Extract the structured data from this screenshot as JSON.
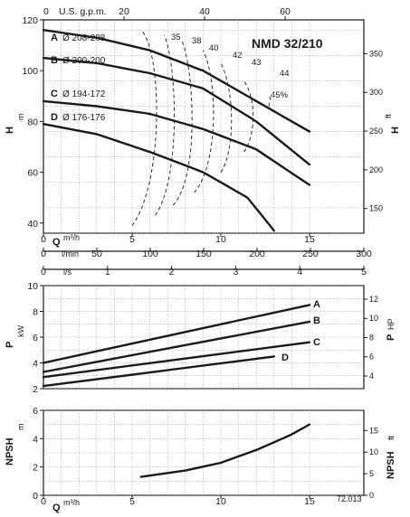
{
  "chart_data": [
    {
      "type": "line",
      "title": "NMD 32/210",
      "ylabel": "H",
      "ylabel_unit": "m",
      "ylabel_right": "H",
      "ylabel_right_unit": "ft",
      "x_label_top": "U.S. g.p.m.",
      "x_label_q": "Q",
      "x_label_q_unit": "m³/h",
      "x_label_lmin": "l/min",
      "x_label_ls": "l/s",
      "xlim": [
        0,
        15
      ],
      "ylim": [
        36,
        120
      ],
      "y_ticks": [
        40,
        60,
        80,
        100,
        120
      ],
      "x_ticks_q": [
        0,
        5,
        10,
        15
      ],
      "x_ticks_gpm": [
        20,
        40,
        60
      ],
      "x_ticks_lmin": [
        0,
        50,
        100,
        150,
        200,
        250,
        300
      ],
      "x_ticks_ls": [
        0,
        1,
        2,
        3,
        4,
        5
      ],
      "y_right_ticks": [
        150,
        200,
        250,
        300,
        350
      ],
      "y_right_tick_labels": [
        "150",
        "200",
        "250",
        "300",
        "350"
      ],
      "series": [
        {
          "letter": "A",
          "name": "Ø 208-208",
          "x": [
            0,
            3,
            6,
            9,
            12,
            13.5,
            15
          ],
          "y": [
            116,
            113,
            108,
            100,
            88,
            82,
            76
          ]
        },
        {
          "letter": "B",
          "name": "Ø 200-200",
          "x": [
            0,
            3,
            6,
            9,
            12,
            15
          ],
          "y": [
            105,
            103,
            99,
            93,
            80,
            63
          ]
        },
        {
          "letter": "C",
          "name": "Ø 194-172",
          "x": [
            0,
            3,
            6,
            9,
            12,
            15
          ],
          "y": [
            88,
            86,
            83,
            77,
            69,
            55
          ]
        },
        {
          "letter": "D",
          "name": "Ø 176-176",
          "x": [
            0,
            3,
            6,
            9,
            11.5,
            13
          ],
          "y": [
            79,
            75,
            68,
            60,
            50,
            37
          ]
        }
      ],
      "efficiency_lines": [
        {
          "label": "35",
          "path": [
            [
              5,
              39
            ],
            [
              6.8,
              56
            ],
            [
              6.7,
              108
            ],
            [
              5.5,
              116
            ]
          ]
        },
        {
          "label": "38",
          "path": [
            [
              6.3,
              43
            ],
            [
              7.8,
              58
            ],
            [
              7.5,
              104
            ],
            [
              6.8,
              114
            ]
          ]
        },
        {
          "label": "40",
          "path": [
            [
              7.3,
              47
            ],
            [
              8.8,
              58
            ],
            [
              8.5,
              100
            ],
            [
              7.8,
              112
            ]
          ]
        },
        {
          "label": "42",
          "path": [
            [
              8.5,
              52
            ],
            [
              9.8,
              62
            ],
            [
              9.9,
              95
            ],
            [
              9.0,
              108
            ]
          ]
        },
        {
          "label": "43",
          "path": [
            [
              10.0,
              60
            ],
            [
              10.8,
              68
            ],
            [
              10.8,
              92
            ],
            [
              10.0,
              103
            ]
          ]
        },
        {
          "label": "44",
          "path": [
            [
              11.3,
              68
            ],
            [
              12.0,
              75
            ],
            [
              12.0,
              89
            ],
            [
              11.3,
              96
            ]
          ]
        },
        {
          "label": "45%",
          "path": [
            [
              12.7,
              86
            ],
            [
              12.8,
              89
            ],
            [
              12.7,
              90
            ]
          ]
        }
      ]
    },
    {
      "type": "line",
      "ylabel": "P",
      "ylabel_unit": "kW",
      "ylabel_right": "P",
      "ylabel_right_unit": "HP",
      "xlim": [
        0,
        15
      ],
      "ylim": [
        2,
        10
      ],
      "y_ticks": [
        2,
        4,
        6,
        8,
        10
      ],
      "y_right_ticks": [
        4,
        6,
        8,
        10,
        12
      ],
      "series": [
        {
          "letter": "A",
          "x": [
            0,
            15
          ],
          "y": [
            4.0,
            8.5
          ]
        },
        {
          "letter": "B",
          "x": [
            0,
            15
          ],
          "y": [
            3.3,
            7.2
          ]
        },
        {
          "letter": "C",
          "x": [
            0,
            15
          ],
          "y": [
            2.9,
            5.6
          ]
        },
        {
          "letter": "D",
          "x": [
            0,
            13
          ],
          "y": [
            2.2,
            4.5
          ]
        }
      ]
    },
    {
      "type": "line",
      "ylabel": "NPSH",
      "ylabel_unit": "m",
      "ylabel_right": "NPSH",
      "ylabel_right_unit": "ft",
      "xlabel": "Q",
      "xlabel_unit": "m³/h",
      "xlim": [
        0,
        15
      ],
      "ylim": [
        0,
        6
      ],
      "y_ticks": [
        0,
        2,
        4,
        6
      ],
      "x_ticks_q": [
        0,
        5,
        10,
        15
      ],
      "y_right_ticks": [
        0,
        5,
        10,
        15
      ],
      "series": [
        {
          "name": "NPSH",
          "x": [
            5.5,
            8,
            10,
            12,
            14,
            15
          ],
          "y": [
            1.3,
            1.75,
            2.3,
            3.2,
            4.3,
            5.0
          ]
        }
      ]
    }
  ],
  "footer_code": "72.013"
}
